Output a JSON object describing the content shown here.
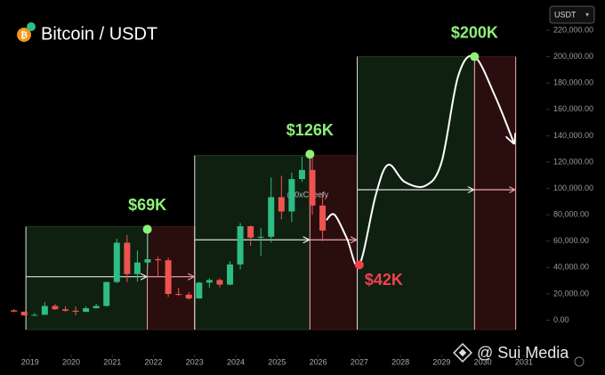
{
  "header": {
    "title": "Bitcoin / USDT",
    "currency": "USDT"
  },
  "watermark": "@0xCheefy",
  "footer": "@ Sui Media",
  "chart_data": {
    "type": "candlestick",
    "xlim": [
      2018.27,
      2031.5
    ],
    "ylim": [
      -24000,
      243000
    ],
    "xticks": [
      2019,
      2020,
      2021,
      2022,
      2023,
      2024,
      2025,
      2026,
      2027,
      2028,
      2029,
      2030,
      2031
    ],
    "yticks": [
      {
        "value": 0,
        "label": "0.00"
      },
      {
        "value": 20000,
        "label": "20,000.00"
      },
      {
        "value": 40000,
        "label": "40,000.00"
      },
      {
        "value": 60000,
        "label": "60,000.00"
      },
      {
        "value": 80000,
        "label": "80,000.00"
      },
      {
        "value": 100000,
        "label": "100,000.00"
      },
      {
        "value": 120000,
        "label": "120,000.00"
      },
      {
        "value": 140000,
        "label": "140,000.00"
      },
      {
        "value": 160000,
        "label": "160,000.00"
      },
      {
        "value": 180000,
        "label": "180,000.00"
      },
      {
        "value": 200000,
        "label": "200,000.00"
      },
      {
        "value": 220000,
        "label": "220,000.00"
      }
    ],
    "candles": {
      "up_color": "#2ebd85",
      "down_color": "#ef5350",
      "x": [
        2018.5,
        2018.75,
        2019,
        2019.25,
        2019.5,
        2019.75,
        2020,
        2020.25,
        2020.5,
        2020.75,
        2021,
        2021.25,
        2021.5,
        2021.75,
        2022,
        2022.25,
        2022.5,
        2022.75,
        2023,
        2023.25,
        2023.5,
        2023.75,
        2024,
        2024.25,
        2024.5,
        2024.75,
        2025,
        2025.25,
        2025.5,
        2025.75,
        2026
      ],
      "open": [
        7500,
        6500,
        3700,
        4100,
        10800,
        8300,
        7200,
        6400,
        9100,
        10800,
        29000,
        58800,
        35000,
        43800,
        46300,
        45500,
        19900,
        19400,
        16500,
        28500,
        30500,
        27000,
        42300,
        71300,
        62700,
        63300,
        93400,
        82500,
        107100,
        114000,
        87000
      ],
      "high": [
        8500,
        6600,
        5500,
        13800,
        12300,
        10500,
        10500,
        10400,
        12400,
        29300,
        61800,
        64800,
        52900,
        69000,
        48200,
        47400,
        24600,
        21400,
        29200,
        31800,
        31800,
        44700,
        73800,
        72000,
        70000,
        108300,
        109600,
        111900,
        124000,
        126000,
        97000
      ],
      "low": [
        6000,
        3200,
        3400,
        4000,
        7800,
        6500,
        3800,
        6200,
        9000,
        10400,
        28100,
        28800,
        29300,
        40000,
        32900,
        17600,
        18200,
        15500,
        16500,
        24700,
        24900,
        26500,
        38500,
        56500,
        49000,
        58900,
        76600,
        74500,
        105000,
        80000,
        60000
      ],
      "close": [
        6500,
        3700,
        4100,
        10800,
        8300,
        7200,
        6400,
        9100,
        10800,
        29000,
        58800,
        35000,
        43800,
        46300,
        45500,
        19900,
        19400,
        16500,
        28500,
        30500,
        27000,
        42300,
        71300,
        62700,
        63300,
        93400,
        82500,
        107100,
        114000,
        87000,
        68000
      ]
    },
    "line": {
      "color": "#ffffff",
      "x": [
        2026.2,
        2026.4,
        2026.7,
        2027.0,
        2027.4,
        2027.7,
        2028.1,
        2028.6,
        2029.0,
        2029.4,
        2029.8,
        2030.3,
        2030.75
      ],
      "values": [
        76000,
        80000,
        62000,
        42000,
        95000,
        118000,
        105000,
        102000,
        120000,
        185000,
        200000,
        170000,
        135000
      ]
    },
    "cycles": [
      {
        "start": 2018.9,
        "peak": 2021.85,
        "end": 2023.0,
        "top": 71000,
        "arrow": 33000
      },
      {
        "start": 2023.0,
        "peak": 2025.8,
        "end": 2026.95,
        "top": 125000,
        "arrow": 61000
      },
      {
        "start": 2026.95,
        "peak": 2029.8,
        "end": 2030.8,
        "top": 200000,
        "arrow": 99000
      }
    ],
    "annotations": [
      {
        "text": "$69K",
        "x": 2021.85,
        "y": 69000,
        "color": "#8ef07a"
      },
      {
        "text": "$126K",
        "x": 2025.8,
        "y": 126000,
        "color": "#8ef07a"
      },
      {
        "text": "$42K",
        "x": 2027.0,
        "y": 42000,
        "color": "#f0414f"
      },
      {
        "text": "$200K",
        "x": 2029.8,
        "y": 200000,
        "color": "#8ef07a"
      }
    ]
  }
}
